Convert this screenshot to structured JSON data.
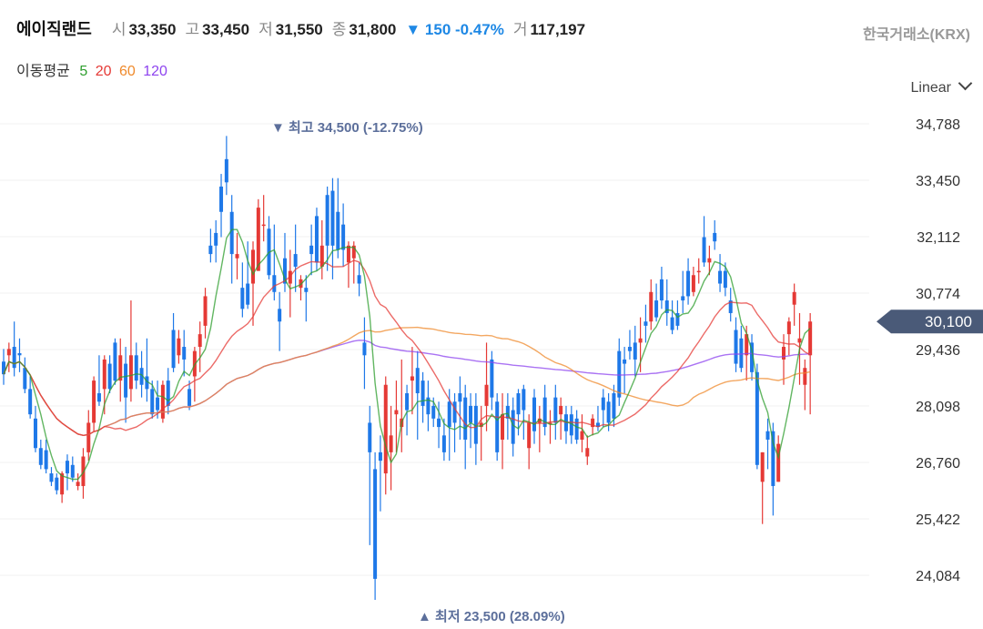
{
  "header": {
    "name": "에이직랜드",
    "open_label": "시",
    "open": "33,350",
    "high_label": "고",
    "high": "33,450",
    "low_label": "저",
    "low": "31,550",
    "close_label": "종",
    "close": "31,800",
    "change": "▼ 150 -0.47%",
    "volume_label": "거",
    "volume": "117,197",
    "exchange": "한국거래소(KRX)"
  },
  "ma_legend": {
    "title": "이동평균",
    "periods": [
      {
        "label": "5",
        "color": "#2e9e2e"
      },
      {
        "label": "20",
        "color": "#e53935"
      },
      {
        "label": "60",
        "color": "#ef8a2c"
      },
      {
        "label": "120",
        "color": "#8e44ef"
      }
    ]
  },
  "scale_mode": "Linear",
  "chart_data": {
    "type": "candlestick",
    "y_ticks": [
      "34,788",
      "33,450",
      "32,112",
      "30,774",
      "29,436",
      "28,098",
      "26,760",
      "25,422",
      "24,084"
    ],
    "y_tick_values": [
      34788,
      33450,
      32112,
      30774,
      29436,
      28098,
      26760,
      25422,
      24084
    ],
    "current_price_label": "30,100",
    "current_price": 30100,
    "max_annotation": "▼ 최고 34,500 (-12.75%)",
    "max_value": 34500,
    "min_annotation": "▲ 최저 23,500 (28.09%)",
    "min_value": 23500,
    "up_color": "#e53935",
    "down_color": "#1e78e8",
    "ma_colors": {
      "ma5": "#2e9e2e",
      "ma20": "#e53935",
      "ma60": "#ef8a2c",
      "ma120": "#8e44ef"
    },
    "candles": [
      [
        29150,
        29450,
        28600,
        28850
      ],
      [
        29300,
        29600,
        28900,
        29450
      ],
      [
        29500,
        30100,
        28800,
        29000
      ],
      [
        29350,
        29700,
        28900,
        29300
      ],
      [
        29000,
        29250,
        28400,
        28500
      ],
      [
        28500,
        28800,
        27800,
        27900
      ],
      [
        27800,
        28100,
        27000,
        27100
      ],
      [
        27100,
        27300,
        26600,
        26700
      ],
      [
        27050,
        27300,
        26500,
        26600
      ],
      [
        26500,
        26650,
        26200,
        26300
      ],
      [
        26400,
        26500,
        26000,
        26100
      ],
      [
        26000,
        26550,
        25800,
        26500
      ],
      [
        26800,
        26950,
        26100,
        26500
      ],
      [
        26700,
        26900,
        26300,
        26400
      ],
      [
        26200,
        26500,
        26100,
        26300
      ],
      [
        26200,
        27100,
        25900,
        26900
      ],
      [
        27000,
        28000,
        26800,
        27700
      ],
      [
        27700,
        28800,
        27500,
        28700
      ],
      [
        28400,
        29300,
        28100,
        28200
      ],
      [
        28500,
        29300,
        27900,
        29200
      ],
      [
        29100,
        29300,
        28400,
        28500
      ],
      [
        29600,
        29700,
        28600,
        28700
      ],
      [
        28700,
        29700,
        28200,
        29300
      ],
      [
        29100,
        29500,
        27700,
        28300
      ],
      [
        28500,
        30600,
        28200,
        29300
      ],
      [
        29300,
        29600,
        28500,
        28700
      ],
      [
        29000,
        29400,
        28300,
        28600
      ],
      [
        28800,
        29700,
        28200,
        28500
      ],
      [
        28500,
        28700,
        27800,
        27900
      ],
      [
        28300,
        28700,
        27800,
        28000
      ],
      [
        27800,
        28700,
        27700,
        28600
      ],
      [
        28700,
        29000,
        27900,
        28100
      ],
      [
        29900,
        30300,
        28900,
        29000
      ],
      [
        29300,
        29900,
        29100,
        29700
      ],
      [
        29500,
        29900,
        28800,
        29200
      ],
      [
        28500,
        28700,
        28000,
        28100
      ],
      [
        28800,
        29500,
        28200,
        29400
      ],
      [
        29500,
        30100,
        28900,
        29800
      ],
      [
        30000,
        30900,
        29700,
        30700
      ],
      [
        31900,
        32300,
        31500,
        31700
      ],
      [
        32200,
        32500,
        31500,
        31900
      ],
      [
        33300,
        33600,
        32100,
        32700
      ],
      [
        33950,
        34500,
        33100,
        33400
      ],
      [
        32700,
        33100,
        31000,
        31700
      ],
      [
        31600,
        32200,
        31100,
        31700
      ],
      [
        30900,
        31500,
        30200,
        30400
      ],
      [
        31000,
        32000,
        30400,
        30500
      ],
      [
        31000,
        32000,
        30000,
        31800
      ],
      [
        31300,
        33000,
        31300,
        32800
      ],
      [
        32400,
        33100,
        32000,
        32400
      ],
      [
        32300,
        32600,
        31100,
        31200
      ],
      [
        31200,
        32400,
        30600,
        30800
      ],
      [
        30400,
        30800,
        29400,
        30100
      ],
      [
        31600,
        32200,
        30800,
        31000
      ],
      [
        31000,
        31800,
        30200,
        31300
      ],
      [
        31700,
        32400,
        30800,
        31400
      ],
      [
        30900,
        31200,
        30600,
        31100
      ],
      [
        30900,
        31200,
        30100,
        30800
      ],
      [
        31900,
        32400,
        31200,
        31700
      ],
      [
        32600,
        32800,
        31300,
        31500
      ],
      [
        31400,
        32500,
        31100,
        31900
      ],
      [
        33100,
        33300,
        31300,
        31900
      ],
      [
        33200,
        33500,
        31100,
        31900
      ],
      [
        32700,
        33500,
        31600,
        31800
      ],
      [
        32400,
        32900,
        31400,
        31800
      ],
      [
        31500,
        32000,
        30900,
        31900
      ],
      [
        31600,
        32000,
        31000,
        31900
      ],
      [
        31200,
        31500,
        30700,
        31000
      ],
      [
        29600,
        30200,
        28500,
        29300
      ],
      [
        27700,
        28100,
        24800,
        27000
      ],
      [
        26600,
        27000,
        23500,
        24000
      ],
      [
        27000,
        27400,
        25600,
        26800
      ],
      [
        26500,
        28800,
        26000,
        28600
      ],
      [
        27000,
        28100,
        26100,
        27400
      ],
      [
        27900,
        28700,
        27000,
        28000
      ],
      [
        27600,
        29200,
        27000,
        27800
      ],
      [
        28400,
        28600,
        27400,
        28000
      ],
      [
        28700,
        29500,
        27900,
        28800
      ],
      [
        29000,
        29400,
        27300,
        28400
      ],
      [
        28700,
        28900,
        27700,
        28100
      ],
      [
        28300,
        28700,
        27500,
        27900
      ],
      [
        28100,
        28300,
        27600,
        27800
      ],
      [
        27800,
        28200,
        27100,
        27600
      ],
      [
        27400,
        27800,
        26800,
        27000
      ],
      [
        28200,
        28500,
        26800,
        27600
      ],
      [
        28200,
        28400,
        27000,
        27700
      ],
      [
        28400,
        28800,
        27300,
        28200
      ],
      [
        28300,
        28600,
        26600,
        27300
      ],
      [
        28100,
        28400,
        27100,
        27700
      ],
      [
        28100,
        28400,
        26700,
        27200
      ],
      [
        27600,
        28100,
        26800,
        27700
      ],
      [
        28100,
        29600,
        27500,
        28600
      ],
      [
        29200,
        29400,
        28000,
        28300
      ],
      [
        28200,
        28400,
        26800,
        27000
      ],
      [
        27300,
        28400,
        26600,
        27900
      ],
      [
        28100,
        28400,
        27300,
        27800
      ],
      [
        28000,
        28300,
        26900,
        27200
      ],
      [
        28400,
        28500,
        27400,
        27900
      ],
      [
        28500,
        28600,
        27300,
        28000
      ],
      [
        27100,
        27900,
        26600,
        27700
      ],
      [
        28300,
        28500,
        27200,
        27500
      ],
      [
        27700,
        28100,
        27000,
        27800
      ],
      [
        28300,
        28600,
        27400,
        27600
      ],
      [
        27700,
        28000,
        27200,
        27700
      ],
      [
        28300,
        28600,
        27300,
        27700
      ],
      [
        27900,
        28300,
        27300,
        28100
      ],
      [
        27900,
        28100,
        27200,
        27500
      ],
      [
        27900,
        28100,
        27200,
        27400
      ],
      [
        27800,
        28000,
        27200,
        27300
      ],
      [
        27300,
        27900,
        27000,
        27500
      ],
      [
        26900,
        27400,
        26700,
        27100
      ],
      [
        27600,
        27900,
        27400,
        27800
      ],
      [
        27700,
        28100,
        27500,
        27600
      ],
      [
        28300,
        28500,
        27600,
        28000
      ],
      [
        28200,
        28400,
        27500,
        27700
      ],
      [
        28400,
        28600,
        27600,
        27800
      ],
      [
        29400,
        29700,
        28100,
        28300
      ],
      [
        29200,
        29500,
        28400,
        29100
      ],
      [
        29500,
        29900,
        29200,
        29400
      ],
      [
        29600,
        30000,
        28800,
        29200
      ],
      [
        29600,
        30200,
        28900,
        29700
      ],
      [
        30100,
        30500,
        29600,
        30000
      ],
      [
        30100,
        31100,
        29900,
        30800
      ],
      [
        30600,
        31000,
        30100,
        30200
      ],
      [
        31100,
        31400,
        30400,
        30600
      ],
      [
        30600,
        31100,
        30000,
        30300
      ],
      [
        30200,
        30600,
        29800,
        29900
      ],
      [
        30300,
        30600,
        29900,
        30000
      ],
      [
        30700,
        31300,
        30300,
        30600
      ],
      [
        31300,
        31600,
        30500,
        30700
      ],
      [
        30800,
        31400,
        30700,
        31200
      ],
      [
        31300,
        31600,
        31000,
        31300
      ],
      [
        32100,
        32600,
        31400,
        31500
      ],
      [
        31500,
        31900,
        31200,
        31600
      ],
      [
        32200,
        32500,
        31800,
        32000
      ],
      [
        31300,
        31700,
        30800,
        31000
      ],
      [
        31300,
        31500,
        30700,
        30900
      ],
      [
        30600,
        30900,
        30100,
        30300
      ],
      [
        29900,
        30200,
        28900,
        29100
      ],
      [
        29700,
        30000,
        28900,
        29000
      ],
      [
        29300,
        30000,
        28700,
        29800
      ],
      [
        29600,
        29800,
        28700,
        28900
      ],
      [
        28900,
        29100,
        26600,
        26700
      ],
      [
        26300,
        27000,
        25300,
        27000
      ],
      [
        27500,
        27800,
        26600,
        27300
      ],
      [
        27500,
        27700,
        25500,
        26200
      ],
      [
        26300,
        27400,
        26300,
        27200
      ],
      [
        29200,
        29800,
        28600,
        29500
      ],
      [
        29800,
        30200,
        29300,
        30100
      ],
      [
        30500,
        31000,
        30000,
        30800
      ],
      [
        29600,
        30300,
        28600,
        29700
      ],
      [
        28600,
        29200,
        28000,
        29000
      ],
      [
        29300,
        30300,
        27900,
        30100
      ]
    ]
  }
}
